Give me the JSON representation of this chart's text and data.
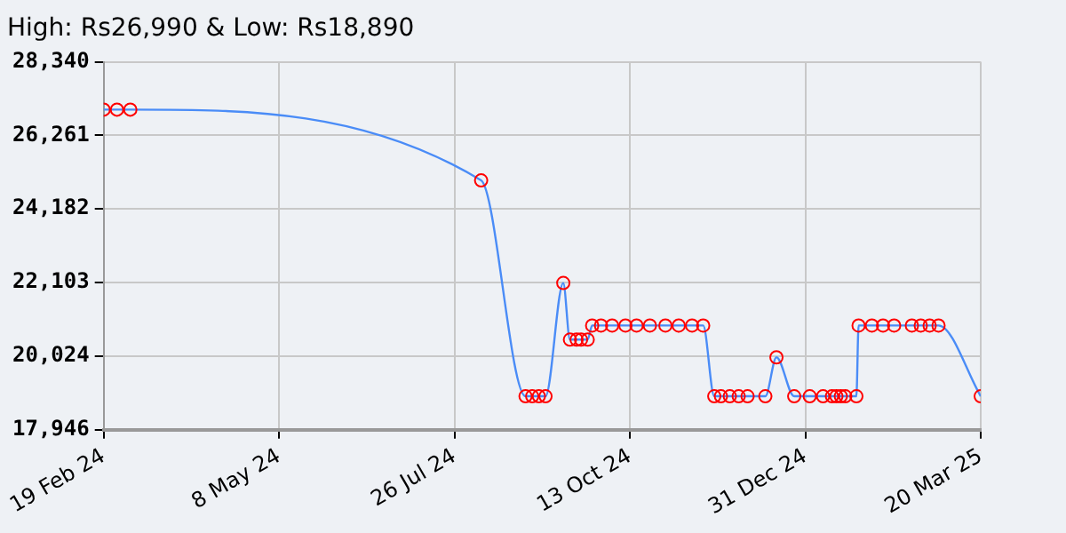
{
  "chart_data": {
    "type": "line",
    "title": "High: Rs26,990 & Low: Rs18,890",
    "x": [
      "2024-02-19",
      "2024-02-25",
      "2024-03-02",
      "2024-08-07",
      "2024-08-27",
      "2024-08-30",
      "2024-09-02",
      "2024-09-05",
      "2024-09-13",
      "2024-09-16",
      "2024-09-19",
      "2024-09-21",
      "2024-09-24",
      "2024-09-26",
      "2024-09-30",
      "2024-10-05",
      "2024-10-11",
      "2024-10-16",
      "2024-10-22",
      "2024-10-29",
      "2024-11-04",
      "2024-11-10",
      "2024-11-15",
      "2024-11-20",
      "2024-11-23",
      "2024-11-27",
      "2024-12-01",
      "2024-12-05",
      "2024-12-13",
      "2024-12-18",
      "2024-12-26",
      "2025-01-02",
      "2025-01-08",
      "2025-01-12",
      "2025-01-14",
      "2025-01-16",
      "2025-01-18",
      "2025-01-23",
      "2025-01-24",
      "2025-01-30",
      "2025-02-04",
      "2025-02-09",
      "2025-02-17",
      "2025-02-21",
      "2025-02-25",
      "2025-03-01",
      "2025-03-20"
    ],
    "series": [
      {
        "color": "#4a8cf7",
        "values": [
          26990,
          26990,
          26990,
          24990,
          18890,
          18890,
          18890,
          18890,
          22090,
          20490,
          20490,
          20490,
          20490,
          20890,
          20890,
          20890,
          20890,
          20890,
          20890,
          20890,
          20890,
          20890,
          20890,
          18890,
          18890,
          18890,
          18890,
          18890,
          18890,
          19990,
          18890,
          18890,
          18890,
          18890,
          18890,
          18890,
          18890,
          18890,
          20890,
          20890,
          20890,
          20890,
          20890,
          20890,
          20890,
          20890,
          18890
        ]
      }
    ],
    "xlim": [
      "2024-02-19",
      "2025-03-20"
    ],
    "xticks": [
      {
        "value": "2024-02-19",
        "label": "19 Feb 24"
      },
      {
        "value": "2024-05-08",
        "label": "8 May 24"
      },
      {
        "value": "2024-07-26",
        "label": "26 Jul 24"
      },
      {
        "value": "2024-10-13",
        "label": "13 Oct 24"
      },
      {
        "value": "2024-12-31",
        "label": "31 Dec 24"
      },
      {
        "value": "2025-03-20",
        "label": "20 Mar 25"
      }
    ],
    "ylim": [
      17946,
      28340
    ],
    "yticks": [
      {
        "value": 17946,
        "label": "17,946"
      },
      {
        "value": 20024,
        "label": "20,024"
      },
      {
        "value": 22103,
        "label": "22,103"
      },
      {
        "value": 24182,
        "label": "24,182"
      },
      {
        "value": 26261,
        "label": "26,261"
      },
      {
        "value": 28340,
        "label": "28,340"
      }
    ],
    "grid": true,
    "legend": false,
    "marker": "circle",
    "line_style": "solid"
  }
}
